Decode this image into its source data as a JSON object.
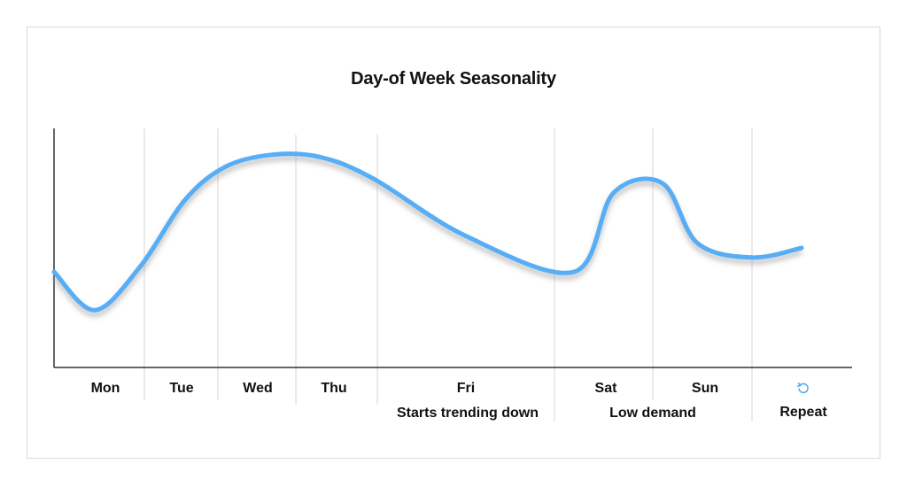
{
  "chart_data": {
    "type": "line",
    "title": "Day-of Week Seasonality",
    "xlabel": "",
    "ylabel": "",
    "categories": [
      "Mon",
      "Tue",
      "Wed",
      "Thu",
      "Fri",
      "Sat",
      "Sun"
    ],
    "sub_labels": {
      "fri": "Starts trending down",
      "sat_sun": "Low demand",
      "repeat": "Repeat"
    },
    "series": [
      {
        "x": [
          0.0,
          0.45,
          0.95,
          1.55,
          2.1,
          2.7,
          3.3,
          3.95,
          4.5,
          5.2,
          5.6,
          6.1,
          6.45,
          7.0,
          7.5
        ],
        "y": [
          0.4,
          0.24,
          0.42,
          0.7,
          0.84,
          0.89,
          0.88,
          0.79,
          0.55,
          0.4,
          0.73,
          0.77,
          0.52,
          0.46,
          0.5
        ]
      }
    ],
    "ylim": [
      0,
      1
    ],
    "grid": "vertical day separators",
    "line_color": "#57adf6",
    "icon": "repeat-icon"
  }
}
